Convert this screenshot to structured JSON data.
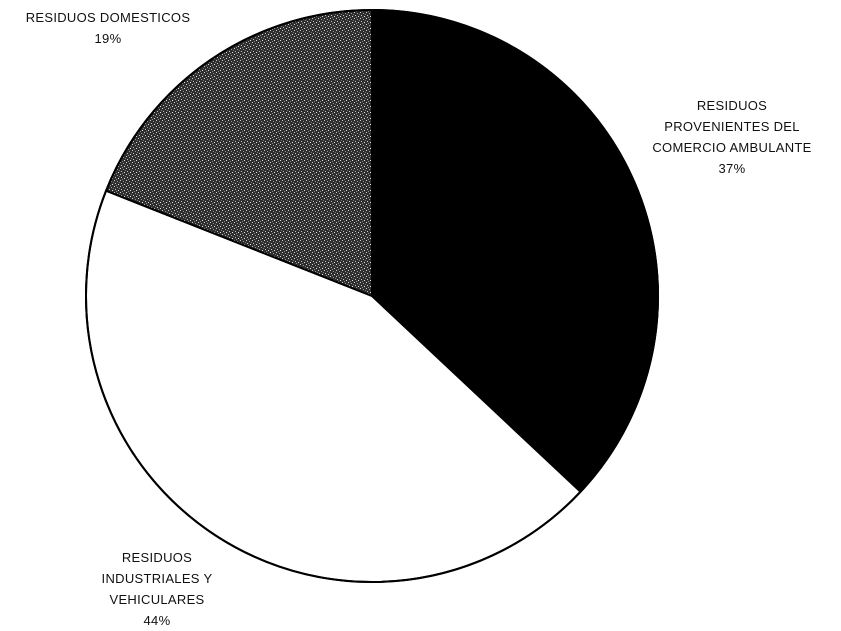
{
  "chart_data": {
    "type": "pie",
    "slices": [
      {
        "name": "RESIDUOS PROVENIENTES DEL COMERCIO AMBULANTE",
        "value": 37,
        "label_lines": [
          "RESIDUOS",
          "PROVENIENTES DEL",
          "COMERCIO AMBULANTE",
          "37%"
        ],
        "fill": "#000000",
        "pattern": "solid"
      },
      {
        "name": "RESIDUOS INDUSTRIALES Y VEHICULARES",
        "value": 44,
        "label_lines": [
          "RESIDUOS",
          "INDUSTRIALES Y",
          "VEHICULARES",
          "44%"
        ],
        "fill": "#ffffff",
        "pattern": "solid"
      },
      {
        "name": "RESIDUOS DOMESTICOS",
        "value": 19,
        "label_lines": [
          "RESIDUOS DOMESTICOS",
          "19%"
        ],
        "fill": "#3a3a3a",
        "pattern": "speckled"
      }
    ],
    "start": "top",
    "direction": "clockwise",
    "legend": "none",
    "data_labels": "outside"
  }
}
